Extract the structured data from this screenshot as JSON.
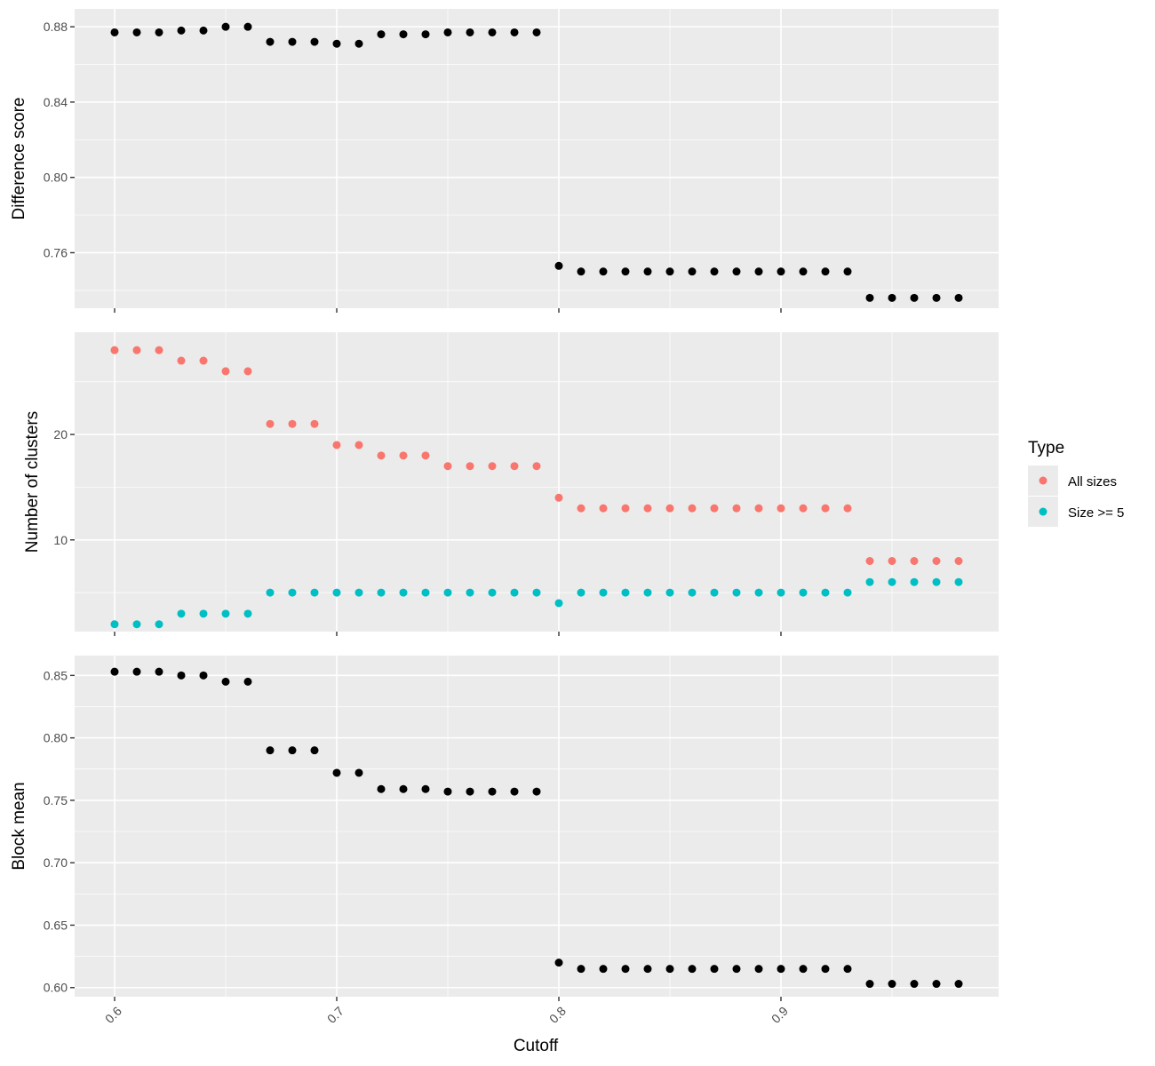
{
  "chart_data": [
    {
      "type": "scatter",
      "title": "",
      "xlabel": "",
      "ylabel": "Difference score",
      "xlim": [
        0.582,
        0.998
      ],
      "ylim": [
        0.7305,
        0.8895
      ],
      "x_ticks": [
        0.6,
        0.7,
        0.8,
        0.9
      ],
      "y_ticks": [
        0.76,
        0.8,
        0.84,
        0.88
      ],
      "y_tick_labels": [
        "0.76",
        "0.80",
        "0.84",
        "0.88"
      ],
      "grid": true,
      "series": [
        {
          "color": "#000000",
          "x": [
            0.6,
            0.61,
            0.62,
            0.63,
            0.64,
            0.65,
            0.66,
            0.67,
            0.68,
            0.69,
            0.7,
            0.71,
            0.72,
            0.73,
            0.74,
            0.75,
            0.76,
            0.77,
            0.78,
            0.79,
            0.8,
            0.81,
            0.82,
            0.83,
            0.84,
            0.85,
            0.86,
            0.87,
            0.88,
            0.89,
            0.9,
            0.91,
            0.92,
            0.93,
            0.94,
            0.95,
            0.96,
            0.97,
            0.98
          ],
          "y": [
            0.877,
            0.877,
            0.877,
            0.878,
            0.878,
            0.88,
            0.88,
            0.872,
            0.872,
            0.872,
            0.871,
            0.871,
            0.876,
            0.876,
            0.876,
            0.877,
            0.877,
            0.877,
            0.877,
            0.877,
            0.753,
            0.75,
            0.75,
            0.75,
            0.75,
            0.75,
            0.75,
            0.75,
            0.75,
            0.75,
            0.75,
            0.75,
            0.75,
            0.75,
            0.736,
            0.736,
            0.736,
            0.736,
            0.736
          ]
        }
      ]
    },
    {
      "type": "scatter",
      "title": "",
      "xlabel": "",
      "ylabel": "Number of clusters",
      "xlim": [
        0.582,
        0.998
      ],
      "ylim": [
        1.3,
        29.7
      ],
      "x_ticks": [
        0.6,
        0.7,
        0.8,
        0.9
      ],
      "y_ticks": [
        10,
        20
      ],
      "y_tick_labels": [
        "10",
        "20"
      ],
      "grid": true,
      "legend": {
        "title": "Type",
        "position": "right",
        "entries": [
          "All sizes",
          "Size >= 5"
        ]
      },
      "series": [
        {
          "name": "All sizes",
          "color": "#F8766D",
          "x": [
            0.6,
            0.61,
            0.62,
            0.63,
            0.64,
            0.65,
            0.66,
            0.67,
            0.68,
            0.69,
            0.7,
            0.71,
            0.72,
            0.73,
            0.74,
            0.75,
            0.76,
            0.77,
            0.78,
            0.79,
            0.8,
            0.81,
            0.82,
            0.83,
            0.84,
            0.85,
            0.86,
            0.87,
            0.88,
            0.89,
            0.9,
            0.91,
            0.92,
            0.93,
            0.94,
            0.95,
            0.96,
            0.97,
            0.98
          ],
          "y": [
            28,
            28,
            28,
            27,
            27,
            26,
            26,
            21,
            21,
            21,
            19,
            19,
            18,
            18,
            18,
            17,
            17,
            17,
            17,
            17,
            14,
            13,
            13,
            13,
            13,
            13,
            13,
            13,
            13,
            13,
            13,
            13,
            13,
            13,
            8,
            8,
            8,
            8,
            8
          ]
        },
        {
          "name": "Size >= 5",
          "color": "#00BFC4",
          "x": [
            0.6,
            0.61,
            0.62,
            0.63,
            0.64,
            0.65,
            0.66,
            0.67,
            0.68,
            0.69,
            0.7,
            0.71,
            0.72,
            0.73,
            0.74,
            0.75,
            0.76,
            0.77,
            0.78,
            0.79,
            0.8,
            0.81,
            0.82,
            0.83,
            0.84,
            0.85,
            0.86,
            0.87,
            0.88,
            0.89,
            0.9,
            0.91,
            0.92,
            0.93,
            0.94,
            0.95,
            0.96,
            0.97,
            0.98
          ],
          "y": [
            2,
            2,
            2,
            3,
            3,
            3,
            3,
            5,
            5,
            5,
            5,
            5,
            5,
            5,
            5,
            5,
            5,
            5,
            5,
            5,
            4,
            5,
            5,
            5,
            5,
            5,
            5,
            5,
            5,
            5,
            5,
            5,
            5,
            5,
            6,
            6,
            6,
            6,
            6
          ]
        }
      ]
    },
    {
      "type": "scatter",
      "title": "",
      "xlabel": "Cutoff",
      "ylabel": "Block mean",
      "xlim": [
        0.582,
        0.998
      ],
      "ylim": [
        0.5927,
        0.8659
      ],
      "x_ticks": [
        0.6,
        0.7,
        0.8,
        0.9
      ],
      "x_tick_labels": [
        "0.6",
        "0.7",
        "0.8",
        "0.9"
      ],
      "y_ticks": [
        0.6,
        0.65,
        0.7,
        0.75,
        0.8,
        0.85
      ],
      "y_tick_labels": [
        "0.60",
        "0.65",
        "0.70",
        "0.75",
        "0.80",
        "0.85"
      ],
      "grid": true,
      "series": [
        {
          "color": "#000000",
          "x": [
            0.6,
            0.61,
            0.62,
            0.63,
            0.64,
            0.65,
            0.66,
            0.67,
            0.68,
            0.69,
            0.7,
            0.71,
            0.72,
            0.73,
            0.74,
            0.75,
            0.76,
            0.77,
            0.78,
            0.79,
            0.8,
            0.81,
            0.82,
            0.83,
            0.84,
            0.85,
            0.86,
            0.87,
            0.88,
            0.89,
            0.9,
            0.91,
            0.92,
            0.93,
            0.94,
            0.95,
            0.96,
            0.97,
            0.98
          ],
          "y": [
            0.853,
            0.853,
            0.853,
            0.85,
            0.85,
            0.845,
            0.845,
            0.79,
            0.79,
            0.79,
            0.772,
            0.772,
            0.759,
            0.759,
            0.759,
            0.757,
            0.757,
            0.757,
            0.757,
            0.757,
            0.62,
            0.615,
            0.615,
            0.615,
            0.615,
            0.615,
            0.615,
            0.615,
            0.615,
            0.615,
            0.615,
            0.615,
            0.615,
            0.615,
            0.603,
            0.603,
            0.603,
            0.603,
            0.603
          ]
        }
      ]
    }
  ]
}
